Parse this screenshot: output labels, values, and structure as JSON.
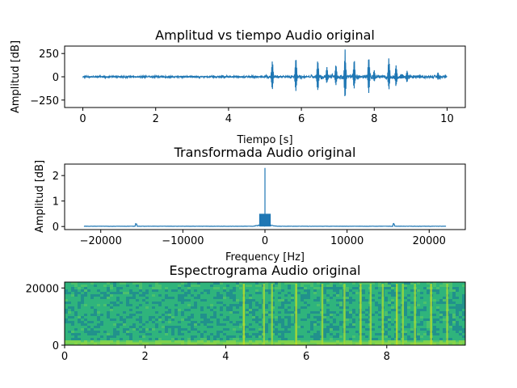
{
  "chart_data": [
    {
      "type": "line",
      "title": "Amplitud vs tiempo Audio original",
      "xlabel": "Tiempo [s]",
      "ylabel": "Amplitud [dB]",
      "xlim": [
        -0.5,
        10.5
      ],
      "ylim": [
        -330,
        330
      ],
      "xticks": [
        0,
        2,
        4,
        6,
        8,
        10
      ],
      "yticks": [
        -250,
        0,
        250
      ],
      "color": "#1f77b4",
      "grid": false,
      "noise_level": 8,
      "bursts": [
        {
          "t": 0.55,
          "a": 12
        },
        {
          "t": 1.05,
          "a": 14
        },
        {
          "t": 2.2,
          "a": 14
        },
        {
          "t": 3.1,
          "a": 10
        },
        {
          "t": 4.6,
          "a": 12
        },
        {
          "t": 5.2,
          "a": 230,
          "b": -165
        },
        {
          "t": 5.85,
          "a": 230,
          "b": -195
        },
        {
          "t": 6.45,
          "a": 235,
          "b": -200
        },
        {
          "t": 6.7,
          "a": 120,
          "b": -80
        },
        {
          "t": 6.95,
          "a": 150,
          "b": -115
        },
        {
          "t": 7.2,
          "a": 300,
          "b": -320
        },
        {
          "t": 7.45,
          "a": 230,
          "b": -150
        },
        {
          "t": 7.85,
          "a": 240,
          "b": -200
        },
        {
          "t": 8.0,
          "a": 90,
          "b": -60
        },
        {
          "t": 8.4,
          "a": 220,
          "b": -170
        },
        {
          "t": 8.6,
          "a": 140,
          "b": -120
        },
        {
          "t": 8.9,
          "a": 80,
          "b": -70
        },
        {
          "t": 9.25,
          "a": 30,
          "b": -25
        },
        {
          "t": 9.75,
          "a": 60,
          "b": -40
        },
        {
          "t": 9.95,
          "a": 30,
          "b": -20
        }
      ]
    },
    {
      "type": "line",
      "title": "Transformada Audio original",
      "xlabel": "Frequency [Hz]",
      "ylabel": "Amplitud [dB]",
      "xlim": [
        -24400,
        24400
      ],
      "ylim": [
        -0.12,
        2.45
      ],
      "xticks": [
        -20000,
        -10000,
        0,
        10000,
        20000
      ],
      "yticks": [
        0,
        1,
        2
      ],
      "color": "#1f77b4",
      "grid": false,
      "range": [
        -22050,
        22050
      ],
      "peak": {
        "f": 0,
        "value": 2.3
      },
      "side_peaks": [
        {
          "f": -15700,
          "value": 0.12
        },
        {
          "f": 15700,
          "value": 0.12
        },
        {
          "f": -300,
          "value": 0.5
        },
        {
          "f": 300,
          "value": 0.5
        }
      ]
    },
    {
      "type": "heatmap",
      "title": "Espectrograma Audio original",
      "xlabel": "",
      "ylabel": "",
      "xlim": [
        0,
        9.95
      ],
      "ylim": [
        0,
        22050
      ],
      "xticks": [
        0,
        2,
        4,
        6,
        8
      ],
      "yticks": [
        0,
        20000
      ],
      "colormap": "viridis",
      "bright_times": [
        4.45,
        4.95,
        5.15,
        5.75,
        6.4,
        6.95,
        7.35,
        7.6,
        7.9,
        8.25,
        8.4,
        8.7,
        9.1,
        9.5
      ]
    }
  ]
}
